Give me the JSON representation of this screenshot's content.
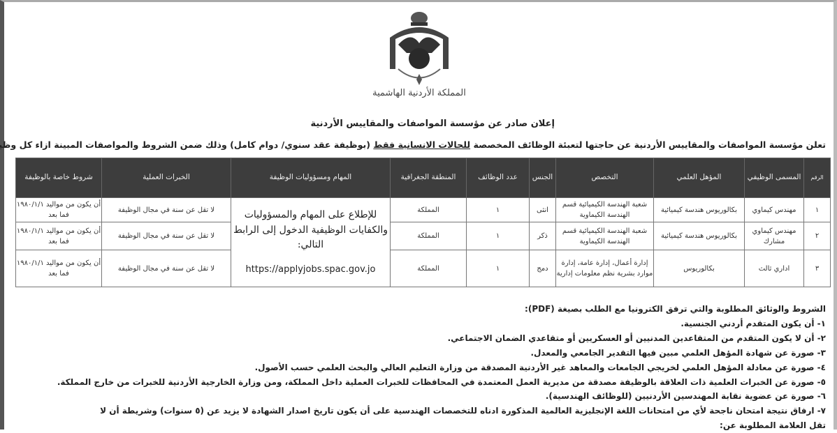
{
  "header": {
    "emblem_text": "المملكة الأردنية الهاشمية",
    "title": "إعلان صادر عن مؤسسة المواصفات والمقاييس الأردنية",
    "intro_before": "تعلن مؤسسة المواصفات والمقاييس الأردنية عن حاجتها لتعبئة الوظائف المخصصة ",
    "intro_underlined": "للحالات الانسانية فقط",
    "intro_after": " (بوظيفة عقد سنوي/ دوام كامل) وذلك ضمن الشروط والمواصفات المبينة ازاء كل وظيفة"
  },
  "table": {
    "headers": [
      "الرقم",
      "المسمى الوظيفي",
      "المؤهل العلمي",
      "التخصص",
      "الجنس",
      "عدد الوظائف",
      "المنطقة الجغرافية",
      "المهام ومسؤوليات الوظيفة",
      "الخبرات العملية",
      "شروط خاصة بالوظيفة"
    ],
    "rows": [
      {
        "num": "١",
        "title": "مهندس كيماوي",
        "qual": "بكالوريوس هندسة كيميائية",
        "spec": "شعبة الهندسة الكيميائية قسم الهندسة الكيماوية",
        "gender": "انثى",
        "count": "١",
        "region": "المملكة",
        "exp": "لا تقل عن سنة في مجال الوظيفة",
        "special": "أن يكون من مواليد ١٩٨٠/١/١ فما بعد"
      },
      {
        "num": "٢",
        "title": "مهندس كيماوي مشارك",
        "qual": "بكالوريوس هندسة كيميائية",
        "spec": "شعبة الهندسة الكيميائية قسم الهندسة الكيماوية",
        "gender": "ذكر",
        "count": "١",
        "region": "المملكة",
        "exp": "لا تقل عن سنة في مجال الوظيفة",
        "special": "أن يكون من مواليد ١٩٨٠/١/١ فما بعد"
      },
      {
        "num": "٣",
        "title": "اداري ثالث",
        "qual": "بكالوريوس",
        "spec": "إدارة أعمال، إدارة عامة، إدارة موارد بشرية نظم معلومات إدارية",
        "gender": "دمج",
        "count": "١",
        "region": "المملكة",
        "exp": "لا تقل عن سنة في مجال الوظيفة",
        "special": "أن يكون من مواليد ١٩٨٠/١/١ فما بعد"
      }
    ],
    "tasks_text": "للإطلاع على المهام والمسؤوليات والكفايات الوظيفية الدخول إلى الرابط التالي:",
    "tasks_url": "https://applyjobs.spac.gov.jo"
  },
  "conditions": {
    "heading": "الشروط والوثائق المطلوبة والتي ترفق الكترونيا مع الطلب بصيغة (PDF):",
    "items": [
      "١- أن يكون المتقدم أردني الجنسية.",
      "٢- أن لا يكون المتقدم من المتقاعدين المدنيين أو العسكريين أو متقاعدي الضمان الاجتماعي.",
      "٣- صورة عن شهادة المؤهل العلمي مبين فيها التقدير الجامعي والمعدل.",
      "٤- صورة عن معادلة المؤهل العلمي لخريجي الجامعات والمعاهد غير الأردنية المصدقة من وزارة التعليم العالي والبحث العلمي حسب الأصول.",
      "٥- صورة عن الخبرات العلمية ذات العلاقة بالوظيفة مصدقة من مديرية العمل المعتمدة في المحافظات للخبرات العملية داخل المملكة، ومن وزارة الخارجية الأردنية للخبرات من خارج المملكة.",
      "٦- صورة عن عضوية نقابة المهندسين الأردنيين (للوظائف الهندسية).",
      "٧- ارفاق نتيجة امتحان ناجحة لأي من امتحانات اللغة الإنجليزية العالمية المذكورة ادناه للتخصصات الهندسية على أن يكون تاريخ اصدار الشهادة لا يزيد عن (٥ سنوات) وشريطة أن لا",
      "تقل العلامة المطلوبة عن:"
    ]
  }
}
